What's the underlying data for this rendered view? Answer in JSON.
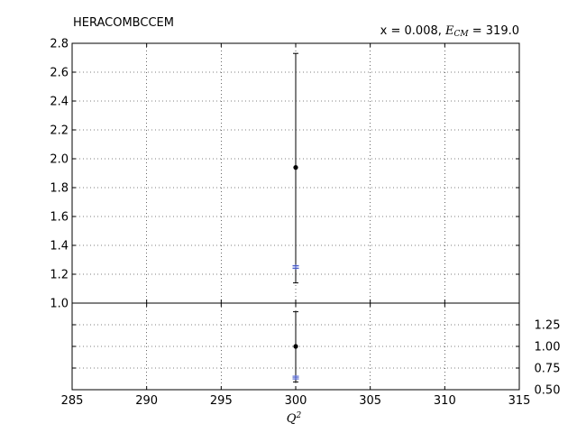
{
  "chart_data": [
    {
      "type": "scatter",
      "panel": "main",
      "title_left": "HERACOMBCCEM",
      "title_right_prefix": "x = 0.008, ",
      "title_right_var": "E",
      "title_right_sub": "CM",
      "title_right_suffix": " = 319.0",
      "xlim": [
        285,
        315
      ],
      "ylim": [
        1.0,
        2.8
      ],
      "x_ticks": [
        285,
        290,
        295,
        300,
        305,
        310,
        315
      ],
      "x_tick_labels": [
        "285",
        "290",
        "295",
        "300",
        "305",
        "310",
        "315"
      ],
      "y_ticks": [
        1.0,
        1.2,
        1.4,
        1.6,
        1.8,
        2.0,
        2.2,
        2.4,
        2.6,
        2.8
      ],
      "y_tick_labels": [
        "1.0",
        "1.2",
        "1.4",
        "1.6",
        "1.8",
        "2.0",
        "2.2",
        "2.4",
        "2.6",
        "2.8"
      ],
      "grid": true,
      "series": [
        {
          "color": "#000000",
          "marker": "dot",
          "points": [
            {
              "x": 300,
              "y": 1.94,
              "ylow": 1.14,
              "yhigh": 2.73
            }
          ]
        },
        {
          "color": "#3b4fc4",
          "marker": "band",
          "points": [
            {
              "x": 300,
              "y": 1.25,
              "ylow": 1.24,
              "yhigh": 1.26
            }
          ]
        }
      ]
    },
    {
      "type": "scatter",
      "panel": "ratio",
      "xlabel_var": "Q",
      "xlabel_sup": "2",
      "xlim": [
        285,
        315
      ],
      "ylim": [
        0.5,
        1.5
      ],
      "y_ticks": [
        0.5,
        0.75,
        1.0,
        1.25
      ],
      "y_tick_labels": [
        "0.50",
        "0.75",
        "1.00",
        "1.25"
      ],
      "y_axis_side": "right",
      "grid": true,
      "series": [
        {
          "color": "#000000",
          "marker": "dot",
          "points": [
            {
              "x": 300,
              "y": 1.0,
              "ylow": 0.59,
              "yhigh": 1.4
            }
          ]
        },
        {
          "color": "#3b4fc4",
          "marker": "band",
          "points": [
            {
              "x": 300,
              "y": 0.64,
              "ylow": 0.625,
              "yhigh": 0.655
            }
          ]
        }
      ]
    }
  ]
}
